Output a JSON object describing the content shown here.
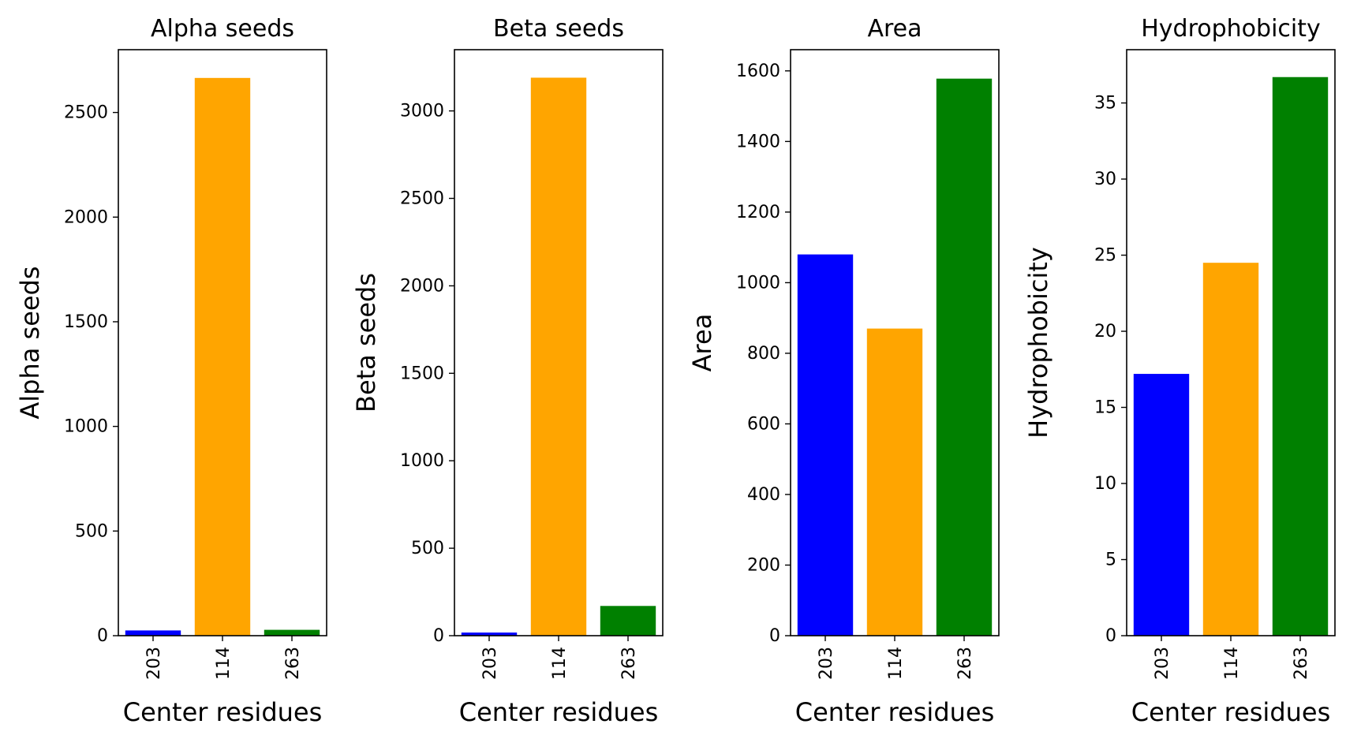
{
  "chart_data": [
    {
      "type": "bar",
      "title": "Alpha seeds",
      "xlabel": "Center residues",
      "ylabel": "Alpha seeds",
      "categories": [
        "203",
        "114",
        "263"
      ],
      "values": [
        25,
        2665,
        28
      ],
      "colors": [
        "#0000ff",
        "#ffa500",
        "#008000"
      ],
      "ylim": [
        0,
        2800
      ],
      "yticks": [
        0,
        500,
        1000,
        1500,
        2000,
        2500
      ],
      "grid": false
    },
    {
      "type": "bar",
      "title": "Beta seeds",
      "xlabel": "Center residues",
      "ylabel": "Beta seeds",
      "categories": [
        "203",
        "114",
        "263"
      ],
      "values": [
        18,
        3190,
        170
      ],
      "colors": [
        "#0000ff",
        "#ffa500",
        "#008000"
      ],
      "ylim": [
        0,
        3350
      ],
      "yticks": [
        0,
        500,
        1000,
        1500,
        2000,
        2500,
        3000
      ],
      "grid": false
    },
    {
      "type": "bar",
      "title": "Area",
      "xlabel": "Center residues",
      "ylabel": "Area",
      "categories": [
        "203",
        "114",
        "263"
      ],
      "values": [
        1080,
        870,
        1578
      ],
      "colors": [
        "#0000ff",
        "#ffa500",
        "#008000"
      ],
      "ylim": [
        0,
        1660
      ],
      "yticks": [
        0,
        200,
        400,
        600,
        800,
        1000,
        1200,
        1400,
        1600
      ],
      "grid": false
    },
    {
      "type": "bar",
      "title": "Hydrophobicity",
      "xlabel": "Center residues",
      "ylabel": "Hydrophobicity",
      "categories": [
        "203",
        "114",
        "263"
      ],
      "values": [
        17.2,
        24.5,
        36.7
      ],
      "colors": [
        "#0000ff",
        "#ffa500",
        "#008000"
      ],
      "ylim": [
        0,
        38.5
      ],
      "yticks": [
        0,
        5,
        10,
        15,
        20,
        25,
        30,
        35
      ],
      "grid": false
    }
  ]
}
